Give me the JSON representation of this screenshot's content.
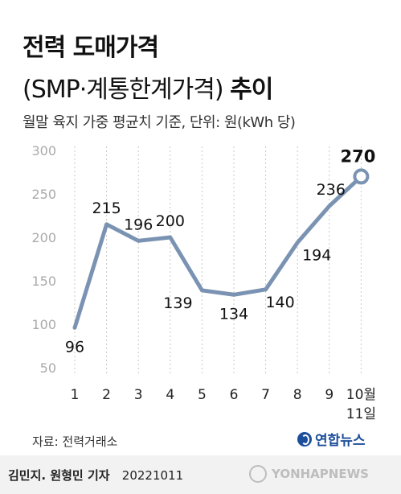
{
  "header": {
    "title_line1": "전력 도매가격",
    "title_line2_regular": "(SMP·계통한계가격)",
    "title_line2_bold": "추이",
    "subtitle": "월말 육지 가중 평균치 기준, 단위: 원(kWh 당)"
  },
  "chart_data": {
    "type": "line",
    "x": [
      "1",
      "2",
      "3",
      "4",
      "5",
      "6",
      "7",
      "8",
      "9",
      "10월\n11일"
    ],
    "values": [
      96,
      215,
      196,
      200,
      139,
      134,
      140,
      194,
      236,
      270
    ],
    "ylim": [
      50,
      300
    ],
    "yticks": [
      50,
      100,
      150,
      200,
      250,
      300
    ],
    "grid": "vertical-dotted",
    "line_color": "#7b93b3",
    "highlight_last": true
  },
  "footer": {
    "source": "자료: 전력거래소",
    "logo_text": "연합뉴스",
    "credit": "김민지. 원형민 기자",
    "date": "20221011",
    "watermark": "YONHAPNEWS"
  }
}
